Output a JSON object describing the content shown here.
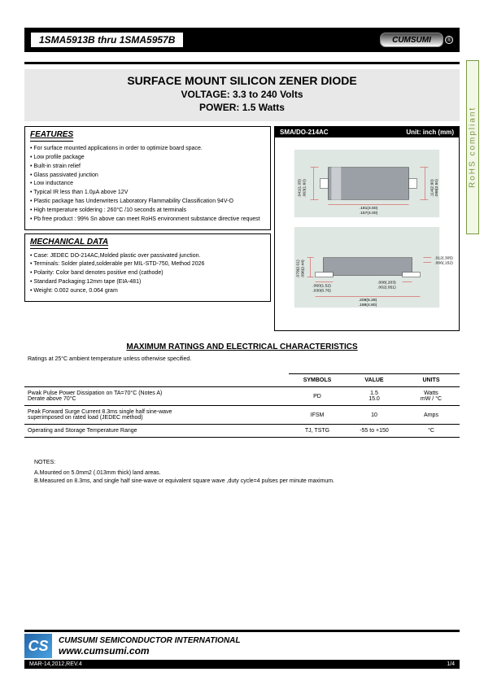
{
  "header": {
    "part_range": "1SMA5913B thru 1SMA5957B",
    "brand": "CUMSUMI",
    "trademark": "®"
  },
  "title": {
    "main": "SURFACE MOUNT SILICON ZENER DIODE",
    "voltage": "VOLTAGE: 3.3 to 240 Volts",
    "power": "POWER: 1.5 Watts"
  },
  "rohs_label": "RoHS compliant",
  "features": {
    "heading": "FEATURES",
    "items": [
      "For surface mounted applications in order to optimize board space.",
      "Low profile package",
      "Built-in strain relief",
      "Glass passivated junction",
      "Low inductance",
      "Typical IR less than 1.0µA above 12V",
      "Plastic package has Underwriters Laboratory Flammability Classification 94V-O",
      "High temperature soldering : 260°C /10 seconds at terminals",
      "Pb free product : 99% Sn above can meet RoHS environment substance directive request"
    ]
  },
  "mechanical": {
    "heading": "MECHANICAL DATA",
    "items": [
      "Case: JEDEC DO-214AC,Molded plastic over passivated junction.",
      "Terminals: Solder plated,solderable per MIL-STD-750, Method 2026",
      "Polarity: Color band denotes positive end (cathode)",
      "Standard Packaging:12mm tape (EIA-481)",
      "Weight: 0.002 ounce, 0.064 gram"
    ]
  },
  "package": {
    "label": "SMA/DO-214AC",
    "unit_label": "Unit: inch (mm)",
    "dims": {
      "top_body_w": ".181(4.60)",
      "top_full_w": ".157(4.00)",
      "top_h1": ".114(2.90)",
      "top_h2": ".098(2.50)",
      "top_left1": ".063(1.60)",
      "top_left2": ".041(1.05)",
      "bot_h1": ".096(2.44)",
      "bot_h2": ".079(2.01)",
      "lead_w1": ".060(1.52)",
      "lead_w2": ".030(0.76)",
      "gap1": ".008(.203)",
      "gap2": ".002(.051)",
      "full1": ".208(5.28)",
      "full2": ".188(4.80)",
      "th1": ".012(.305)",
      "th2": ".006(.152)"
    },
    "colors": {
      "body": "#9aa0a6",
      "band": "#c9ccd0",
      "pad": "#ffffff",
      "bg": "#dfe7e3",
      "line": "#d0332e"
    }
  },
  "ratings": {
    "heading": "MAXIMUM RATINGS AND ELECTRICAL CHARACTERISTICS",
    "condition": "Ratings at 25°C ambient temperature unless otherwise specified.",
    "columns": [
      "SYMBOLS",
      "VALUE",
      "UNITS"
    ],
    "rows": [
      {
        "param_lines": [
          "Pwak Pulse Power Dissipation on TA=70°C (Notes A)",
          "Derate above 70°C"
        ],
        "symbol": "PD",
        "value_lines": [
          "1.5",
          "15.0"
        ],
        "unit_lines": [
          "Watts",
          "mW / °C"
        ]
      },
      {
        "param_lines": [
          "Peak Forward Surge Current 8.3ms single half sine-wave",
          "superimposed on rated load (JEDEC method)"
        ],
        "symbol": "IFSM",
        "value_lines": [
          "10"
        ],
        "unit_lines": [
          "Amps"
        ]
      },
      {
        "param_lines": [
          "Operating and Storage Temperature Range"
        ],
        "symbol": "TJ, TSTG",
        "value_lines": [
          "-55 to +150"
        ],
        "unit_lines": [
          "°C"
        ]
      }
    ]
  },
  "notes": {
    "heading": "NOTES:",
    "items": [
      "A.Mounted on 5.0mm2 (.013mm thick) land areas.",
      "B.Measured on 8.3ms, and single half sine-wave or equivalent square wave ,duty cycle=4 pulses per minute maximum."
    ]
  },
  "footer": {
    "company": "CUMSUMI SEMICONDUCTOR INTERNATIONAL",
    "url": "www.cumsumi.com",
    "rev": "MAR-14,2012,REV.4",
    "page": "1/4",
    "logo_text": "CS"
  }
}
